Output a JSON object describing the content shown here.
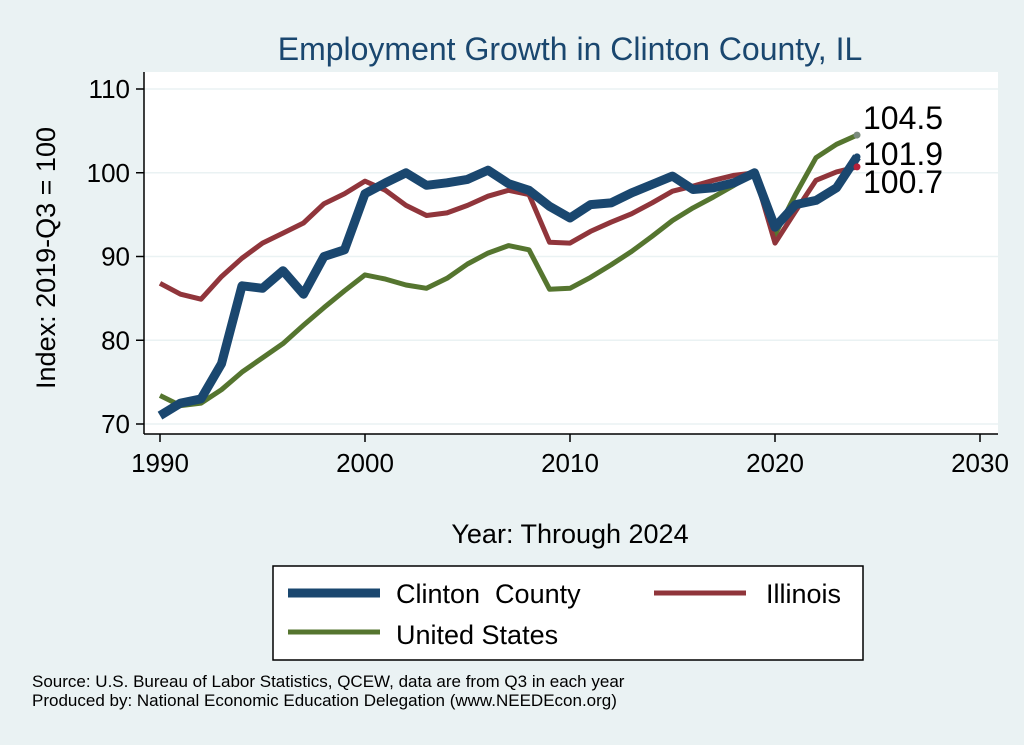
{
  "chart_data": {
    "type": "line",
    "title": "Employment Growth in Clinton County, IL",
    "xlabel": "Year: Through 2024",
    "ylabel": "Index: 2019-Q3 = 100",
    "xlim": [
      1990,
      2030
    ],
    "ylim": [
      70,
      110
    ],
    "xticks": [
      1990,
      2000,
      2010,
      2020,
      2030
    ],
    "yticks": [
      70,
      80,
      90,
      100,
      110
    ],
    "grid": true,
    "legend_position": "bottom",
    "x": [
      1990,
      1991,
      1992,
      1993,
      1994,
      1995,
      1996,
      1997,
      1998,
      1999,
      2000,
      2001,
      2002,
      2003,
      2004,
      2005,
      2006,
      2007,
      2008,
      2009,
      2010,
      2011,
      2012,
      2013,
      2014,
      2015,
      2016,
      2017,
      2018,
      2019,
      2020,
      2021,
      2022,
      2023,
      2024
    ],
    "series": [
      {
        "name": "Clinton  County",
        "color": "#1a476f",
        "values": [
          71.0,
          72.5,
          73.0,
          77.2,
          86.5,
          86.2,
          88.3,
          85.5,
          90.0,
          90.8,
          97.5,
          98.8,
          100.0,
          98.5,
          98.8,
          99.2,
          100.3,
          98.7,
          97.9,
          96.0,
          94.6,
          96.2,
          96.4,
          97.6,
          98.6,
          99.6,
          98.0,
          98.2,
          98.8,
          100.0,
          93.5,
          96.2,
          96.7,
          98.2,
          101.9
        ]
      },
      {
        "name": "Illinois",
        "color": "#90353b",
        "values": [
          86.8,
          85.5,
          84.9,
          87.6,
          89.8,
          91.6,
          92.8,
          94.0,
          96.3,
          97.5,
          99.0,
          97.9,
          96.1,
          94.9,
          95.2,
          96.1,
          97.2,
          97.9,
          97.4,
          91.7,
          91.6,
          93.0,
          94.1,
          95.1,
          96.4,
          97.8,
          98.4,
          99.1,
          99.7,
          100.0,
          91.6,
          95.4,
          99.1,
          100.1,
          100.7
        ]
      },
      {
        "name": "United States",
        "color": "#55752f",
        "values": [
          73.4,
          72.2,
          72.5,
          74.1,
          76.2,
          77.9,
          79.6,
          81.8,
          83.9,
          85.9,
          87.8,
          87.3,
          86.6,
          86.2,
          87.4,
          89.1,
          90.4,
          91.3,
          90.8,
          86.1,
          86.2,
          87.5,
          89.0,
          90.6,
          92.4,
          94.3,
          95.8,
          97.1,
          98.5,
          100.0,
          92.6,
          97.4,
          101.8,
          103.4,
          104.5
        ]
      }
    ],
    "end_labels": [
      {
        "series": "United States",
        "text": "104.5"
      },
      {
        "series": "Clinton  County",
        "text": "101.9"
      },
      {
        "series": "Illinois",
        "text": "100.7"
      }
    ]
  },
  "footer": {
    "source": "Source: U.S. Bureau of Labor Statistics, QCEW, data are from Q3 in each year",
    "produced_by": "Produced by: National Economic Education Delegation (www.NEEDEcon.org)"
  },
  "colors": {
    "background": "#eaf2f3",
    "plot_area": "#ffffff",
    "gridline": "#eaf2f3",
    "title": "#1a476f"
  }
}
